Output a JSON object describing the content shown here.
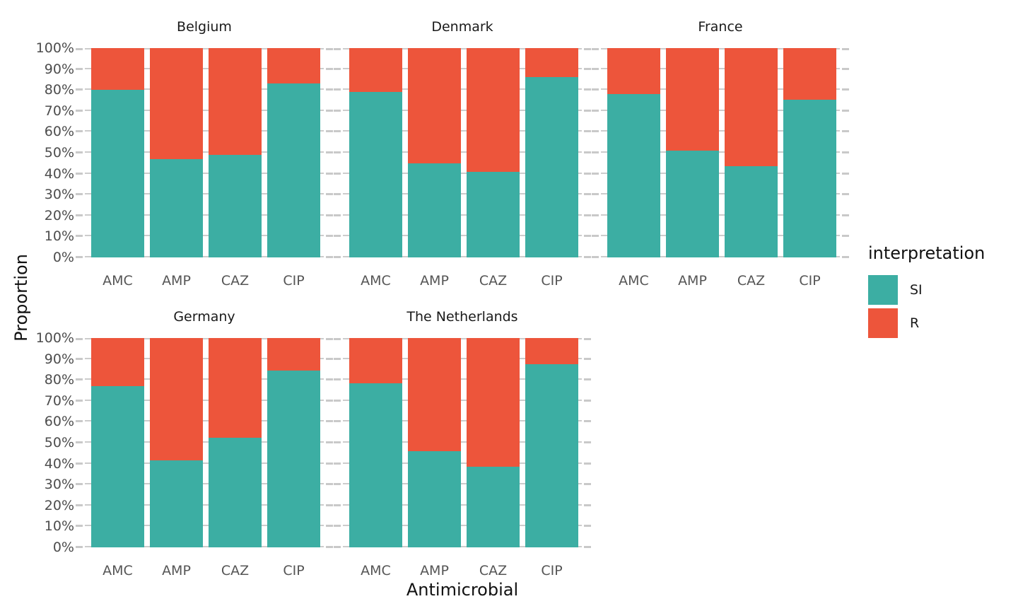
{
  "figure": {
    "y_axis_title": "Proportion",
    "x_axis_title": "Antimicrobial",
    "y_tick_labels": [
      "0%",
      "10%",
      "20%",
      "30%",
      "40%",
      "50%",
      "60%",
      "70%",
      "80%",
      "90%",
      "100%"
    ],
    "grid_color": "#CCCCCC",
    "tick_label_color": "#4D4D4D",
    "background": "#FFFFFF"
  },
  "chart_data": {
    "type": "bar",
    "subtype": "stacked-100-percent-faceted",
    "title": "",
    "xlabel": "Antimicrobial",
    "ylabel": "Proportion",
    "ylim": [
      0,
      100
    ],
    "y_tick_step_percent": 10,
    "grid": "horizontal",
    "categories": [
      "AMC",
      "AMP",
      "CAZ",
      "CIP"
    ],
    "legend": {
      "title": "interpretation",
      "position": "right",
      "items": [
        {
          "label": "SI",
          "color": "#3CAEA3"
        },
        {
          "label": "R",
          "color": "#ED553B"
        }
      ]
    },
    "facets": [
      {
        "title": "Belgium",
        "series": [
          {
            "name": "SI",
            "values": [
              80,
              47,
              49,
              83
            ]
          },
          {
            "name": "R",
            "values": [
              20,
              53,
              51,
              17
            ]
          }
        ]
      },
      {
        "title": "Denmark",
        "series": [
          {
            "name": "SI",
            "values": [
              79,
              45,
              41,
              86
            ]
          },
          {
            "name": "R",
            "values": [
              21,
              55,
              59,
              14
            ]
          }
        ]
      },
      {
        "title": "France",
        "series": [
          {
            "name": "SI",
            "values": [
              78,
              51,
              43.5,
              75.5
            ]
          },
          {
            "name": "R",
            "values": [
              22,
              49,
              56.5,
              24.5
            ]
          }
        ]
      },
      {
        "title": "Germany",
        "series": [
          {
            "name": "SI",
            "values": [
              77,
              41.5,
              52.5,
              84.5
            ]
          },
          {
            "name": "R",
            "values": [
              23,
              58.5,
              47.5,
              15.5
            ]
          }
        ]
      },
      {
        "title": "The Netherlands",
        "series": [
          {
            "name": "SI",
            "values": [
              78.5,
              46,
              38.5,
              87.5
            ]
          },
          {
            "name": "R",
            "values": [
              21.5,
              54,
              61.5,
              12.5
            ]
          }
        ]
      }
    ]
  }
}
